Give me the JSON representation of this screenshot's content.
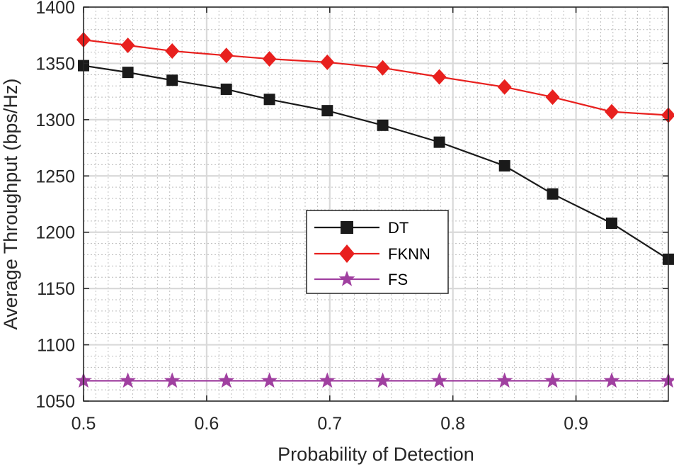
{
  "chart_data": {
    "type": "line",
    "title": "",
    "xlabel": "Probability of Detection",
    "ylabel": "Average Throughput (bps/Hz)",
    "xlim": [
      0.5,
      0.975
    ],
    "ylim": [
      1050,
      1400
    ],
    "xticks": [
      0.5,
      0.6,
      0.7,
      0.8,
      0.9
    ],
    "xtick_labels": [
      "0.5",
      "0.6",
      "0.7",
      "0.8",
      "0.9"
    ],
    "yticks": [
      1050,
      1100,
      1150,
      1200,
      1250,
      1300,
      1350,
      1400
    ],
    "ytick_labels": [
      "1050",
      "1100",
      "1150",
      "1200",
      "1250",
      "1300",
      "1350",
      "1400"
    ],
    "grid": true,
    "legend_position": "center-right",
    "x": [
      0.5,
      0.536,
      0.572,
      0.616,
      0.651,
      0.698,
      0.743,
      0.789,
      0.842,
      0.881,
      0.929,
      0.975
    ],
    "series": [
      {
        "name": "DT",
        "color": "#1a1a1a",
        "marker": "square",
        "values": [
          1348,
          1342,
          1335,
          1327,
          1318,
          1308,
          1295,
          1280,
          1259,
          1234,
          1208,
          1176
        ]
      },
      {
        "name": "FKNN",
        "color": "#e8201e",
        "marker": "diamond",
        "values": [
          1371,
          1366,
          1361,
          1357,
          1354,
          1351,
          1346,
          1338,
          1329,
          1320,
          1307,
          1304
        ]
      },
      {
        "name": "FS",
        "color": "#a040a0",
        "marker": "star",
        "values": [
          1068,
          1068,
          1068,
          1068,
          1068,
          1068,
          1068,
          1068,
          1068,
          1068,
          1068,
          1068
        ]
      }
    ]
  }
}
